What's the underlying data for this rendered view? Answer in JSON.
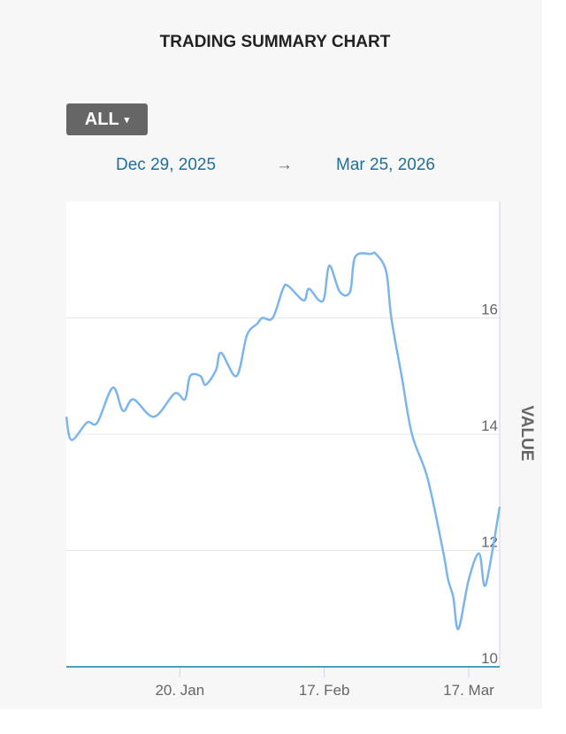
{
  "title": "TRADING SUMMARY CHART",
  "range_selector": {
    "label": "ALL",
    "caret": "▾"
  },
  "date_range": {
    "start": "Dec 29, 2025",
    "arrow": "→",
    "end": "Mar 25, 2026"
  },
  "colors": {
    "line": "#7cb5ec",
    "date_text": "#1f6f9a",
    "button_bg": "#666666",
    "axis_line": "#4c9fb4"
  },
  "chart_data": {
    "type": "line",
    "title": "TRADING SUMMARY CHART",
    "xlabel": "",
    "ylabel": "VALUE",
    "ylim": [
      10,
      18
    ],
    "xlim": [
      "2025-12-29",
      "2026-03-23"
    ],
    "yticks": [
      10,
      12,
      14,
      16
    ],
    "xticks": [
      {
        "date": "2026-01-20",
        "label": "20. Jan"
      },
      {
        "date": "2026-02-17",
        "label": "17. Feb"
      },
      {
        "date": "2026-03-17",
        "label": "17. Mar"
      }
    ],
    "grid": true,
    "y_axis_side": "right",
    "points": [
      [
        "2025-12-29",
        14.3
      ],
      [
        "2025-12-30",
        13.9
      ],
      [
        "2026-01-02",
        14.2
      ],
      [
        "2026-01-04",
        14.2
      ],
      [
        "2026-01-07",
        14.8
      ],
      [
        "2026-01-09",
        14.4
      ],
      [
        "2026-01-11",
        14.6
      ],
      [
        "2026-01-15",
        14.3
      ],
      [
        "2026-01-19",
        14.7
      ],
      [
        "2026-01-21",
        14.6
      ],
      [
        "2026-01-22",
        15.0
      ],
      [
        "2026-01-24",
        15.0
      ],
      [
        "2026-01-25",
        14.85
      ],
      [
        "2026-01-27",
        15.1
      ],
      [
        "2026-01-28",
        15.4
      ],
      [
        "2026-01-31",
        15.0
      ],
      [
        "2026-02-02",
        15.7
      ],
      [
        "2026-02-04",
        15.9
      ],
      [
        "2026-02-05",
        16.0
      ],
      [
        "2026-02-07",
        16.0
      ],
      [
        "2026-02-09",
        16.5
      ],
      [
        "2026-02-10",
        16.55
      ],
      [
        "2026-02-13",
        16.3
      ],
      [
        "2026-02-14",
        16.5
      ],
      [
        "2026-02-16",
        16.3
      ],
      [
        "2026-02-17",
        16.35
      ],
      [
        "2026-02-18",
        16.9
      ],
      [
        "2026-02-20",
        16.45
      ],
      [
        "2026-02-22",
        16.45
      ],
      [
        "2026-02-23",
        17.05
      ],
      [
        "2026-02-26",
        17.1
      ],
      [
        "2026-02-27",
        17.1
      ],
      [
        "2026-03-01",
        16.8
      ],
      [
        "2026-03-02",
        16.0
      ],
      [
        "2026-03-04",
        15.0
      ],
      [
        "2026-03-06",
        14.0
      ],
      [
        "2026-03-09",
        13.25
      ],
      [
        "2026-03-12",
        12.0
      ],
      [
        "2026-03-13",
        11.5
      ],
      [
        "2026-03-14",
        11.2
      ],
      [
        "2026-03-15",
        10.65
      ],
      [
        "2026-03-17",
        11.5
      ],
      [
        "2026-03-19",
        11.95
      ],
      [
        "2026-03-20",
        11.4
      ],
      [
        "2026-03-21",
        11.7
      ],
      [
        "2026-03-23",
        12.75
      ]
    ]
  }
}
